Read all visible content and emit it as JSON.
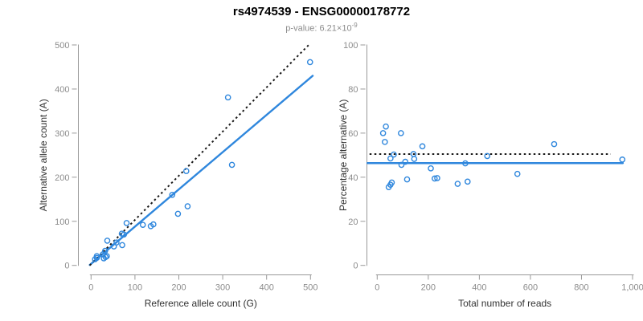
{
  "header": {
    "title": "rs4974539 - ENSG00000178772",
    "subtitle_base": "p-value: 6.21×10",
    "subtitle_exponent": "-9"
  },
  "colors": {
    "accent": "#2f87dd",
    "dotted": "#1a1a1a",
    "axis_line": "#999999",
    "tick_label": "#8c8c8c",
    "axis_title": "#333333"
  },
  "chart_data": [
    {
      "type": "scatter",
      "name": "allele-counts-scatter",
      "xlabel": "Reference allele count (G)",
      "ylabel": "Alternative allele count (A)",
      "xlim": [
        0,
        500
      ],
      "ylim": [
        0,
        500
      ],
      "grid": false,
      "xticks": {
        "values": [
          0,
          100,
          200,
          300,
          400,
          500
        ],
        "labels": [
          "0",
          "100",
          "200",
          "300",
          "400",
          "500"
        ]
      },
      "yticks": {
        "values": [
          0,
          100,
          200,
          300,
          400,
          500
        ],
        "labels": [
          "0",
          "100",
          "200",
          "300",
          "400",
          "500"
        ]
      },
      "points": [
        [
          9,
          14
        ],
        [
          13,
          21
        ],
        [
          13,
          17
        ],
        [
          29,
          16
        ],
        [
          33,
          19
        ],
        [
          36,
          21
        ],
        [
          27,
          25
        ],
        [
          32,
          33
        ],
        [
          37,
          56
        ],
        [
          52,
          43
        ],
        [
          58,
          52
        ],
        [
          71,
          46
        ],
        [
          70,
          72
        ],
        [
          75,
          70
        ],
        [
          81,
          96
        ],
        [
          118,
          92
        ],
        [
          136,
          89
        ],
        [
          142,
          93
        ],
        [
          198,
          117
        ],
        [
          220,
          134
        ],
        [
          185,
          160
        ],
        [
          217,
          214
        ],
        [
          321,
          228
        ],
        [
          312,
          381
        ],
        [
          499,
          461
        ]
      ],
      "lines": [
        {
          "name": "regression-line",
          "style": "solid",
          "color_key": "accent",
          "p1": [
            -3,
            1
          ],
          "p2": [
            505,
            430
          ]
        },
        {
          "name": "identity-line",
          "style": "dotted",
          "color_key": "dotted",
          "p1": [
            -3,
            0
          ],
          "p2": [
            496,
            500
          ]
        }
      ]
    },
    {
      "type": "scatter",
      "name": "percentage-vs-reads-scatter",
      "xlabel": "Total number of reads",
      "ylabel": "Percentage alternative (A)",
      "xlim": [
        0,
        1000
      ],
      "ylim": [
        0,
        100
      ],
      "grid": false,
      "xticks": {
        "values": [
          0,
          200,
          400,
          600,
          800,
          1000
        ],
        "labels": [
          "0",
          "200",
          "400",
          "600",
          "800",
          "1,000"
        ]
      },
      "yticks": {
        "values": [
          0,
          20,
          40,
          60,
          80,
          100
        ],
        "labels": [
          "0",
          "20",
          "40",
          "60",
          "80",
          "100"
        ]
      },
      "points": [
        [
          23,
          60
        ],
        [
          34,
          63
        ],
        [
          30,
          56
        ],
        [
          45,
          35.5
        ],
        [
          52,
          36.6
        ],
        [
          57,
          37.6
        ],
        [
          52,
          48.5
        ],
        [
          65,
          50.3
        ],
        [
          93,
          60
        ],
        [
          95,
          45.6
        ],
        [
          110,
          47
        ],
        [
          117,
          39
        ],
        [
          142,
          50.5
        ],
        [
          145,
          48.3
        ],
        [
          177,
          54
        ],
        [
          210,
          44
        ],
        [
          225,
          39.4
        ],
        [
          235,
          39.6
        ],
        [
          315,
          37
        ],
        [
          354,
          38
        ],
        [
          345,
          46.3
        ],
        [
          431,
          49.6
        ],
        [
          549,
          41.5
        ],
        [
          693,
          55
        ],
        [
          960,
          48
        ]
      ],
      "lines": [
        {
          "name": "mean-percentage-line",
          "style": "solid",
          "color_key": "accent",
          "p1": [
            -38,
            46.4
          ],
          "p2": [
            962,
            46.4
          ]
        },
        {
          "name": "expected-50-line",
          "style": "dotted",
          "color_key": "dotted",
          "p1": [
            -30,
            50.5
          ],
          "p2": [
            915,
            50.5
          ]
        }
      ]
    }
  ]
}
